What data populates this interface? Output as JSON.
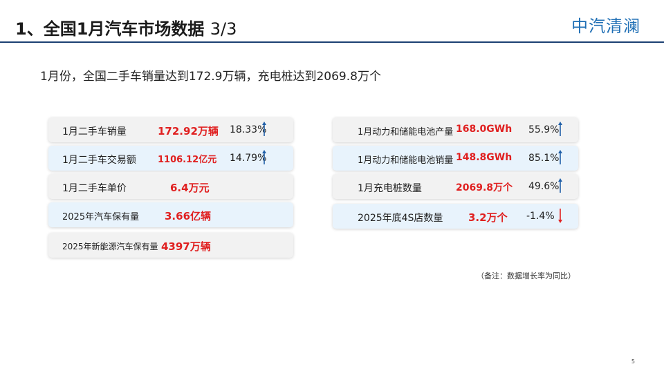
{
  "header": {
    "title": "1、全国1月汽车市场数据",
    "title_page": "3/3",
    "brand": "中汽清澜"
  },
  "subtitle": "1月份，全国二手车销量达到172.9万辆，充电桩达到2069.8万个",
  "left_cards": [
    {
      "label": "1月二手车销量",
      "value": "172.92万辆",
      "pct": "18.33%",
      "trend": "up"
    },
    {
      "label": "1月二手车交易额",
      "value": "1106.12亿元",
      "pct": "14.79%",
      "trend": "up"
    },
    {
      "label": "1月二手车单价",
      "value": "6.4万元"
    },
    {
      "label": "2025年汽车保有量",
      "value": "3.66亿辆"
    },
    {
      "label": "2025年新能源汽车保有量",
      "value": "4397万辆"
    }
  ],
  "right_cards": [
    {
      "label": "1月动力和储能电池产量",
      "value": "168.0GWh",
      "pct": "55.9%",
      "trend": "up"
    },
    {
      "label": "1月动力和储能电池销量",
      "value": "148.8GWh",
      "pct": "85.1%",
      "trend": "up"
    },
    {
      "label": "1月充电桩数量",
      "value": "2069.8万个",
      "pct": "49.6%",
      "trend": "up"
    },
    {
      "label": "2025年底4S店数量",
      "value": "3.2万个",
      "pct": "-1.4%",
      "trend": "down"
    }
  ],
  "note": "（备注：数据增长率为同比）",
  "page_number": "5",
  "colors": {
    "value_red": "#e02020",
    "arrow_up": "#1f5fa8",
    "arrow_down": "#e02020",
    "brand_blue": "#1f6fb5",
    "rule": "#1b3f72"
  }
}
